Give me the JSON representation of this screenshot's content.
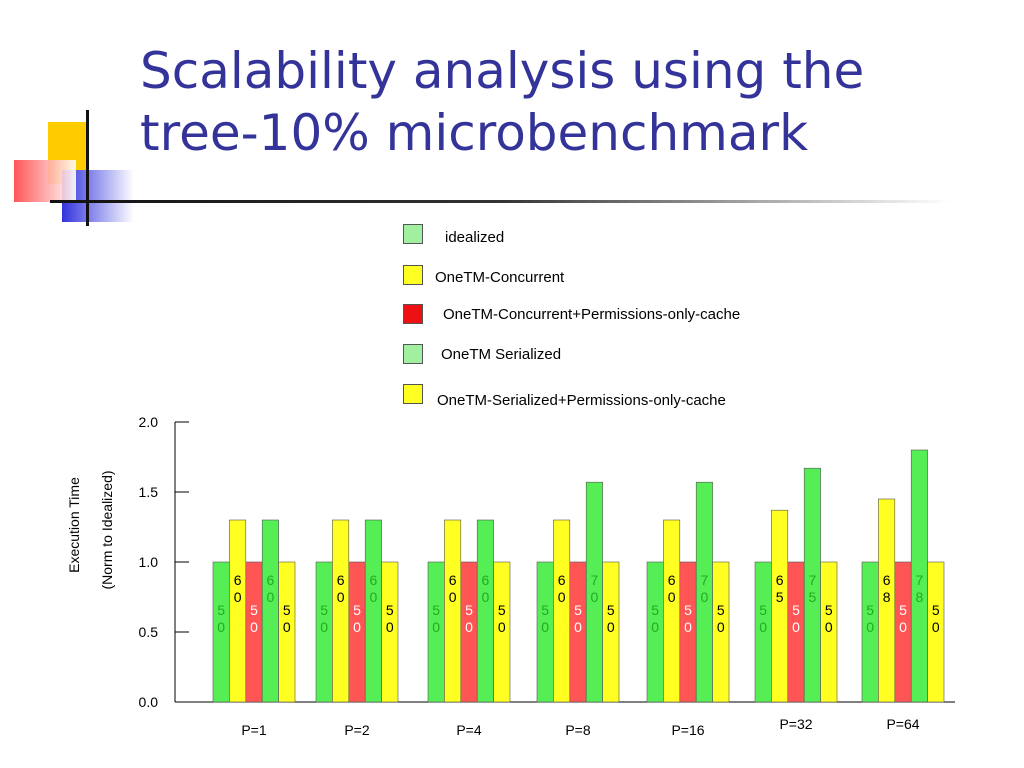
{
  "slide": {
    "title_line1": "Scalability analysis using the",
    "title_line2": "tree-10% microbenchmark"
  },
  "colors": {
    "title": "#333399",
    "green": "#55ee55",
    "yellow": "#ffff22",
    "red": "#ff5555",
    "light_green": "#a0f0a0"
  },
  "chart_data": {
    "type": "bar",
    "ylabel_line1": "Execution Time",
    "ylabel_line2": "(Norm to Idealized)",
    "ylim": [
      0,
      2.0
    ],
    "yticks": [
      "0.0",
      "0.5",
      "1.0",
      "1.5",
      "2.0"
    ],
    "categories": [
      "P=1",
      "P=2",
      "P=4",
      "P=8",
      "P=16",
      "P=32",
      "P=64"
    ],
    "legend": [
      {
        "name": "idealized",
        "color": "#a0f0a0"
      },
      {
        "name": "OneTM-Concurrent",
        "color": "#ffff22"
      },
      {
        "name": "OneTM-Concurrent+Permissions-only-cache",
        "color": "#ee1111"
      },
      {
        "name": "OneTM Serialized",
        "color": "#a0f0a0"
      },
      {
        "name": "OneTM-Serialized+Permissions-only-cache",
        "color": "#ffff22"
      }
    ],
    "series": [
      {
        "color": "#55ee55",
        "label_color": "#22aa22",
        "values": [
          1.0,
          1.0,
          1.0,
          1.0,
          1.0,
          1.0,
          1.0
        ],
        "labels": [
          "50",
          "50",
          "50",
          "50",
          "50",
          "50",
          "50"
        ]
      },
      {
        "color": "#ffff22",
        "label_color": "#000000",
        "values": [
          1.3,
          1.3,
          1.3,
          1.3,
          1.3,
          1.37,
          1.45
        ],
        "labels": [
          "60",
          "60",
          "60",
          "60",
          "60",
          "65",
          "68"
        ]
      },
      {
        "color": "#ff5555",
        "label_color": "#ffffff",
        "values": [
          1.0,
          1.0,
          1.0,
          1.0,
          1.0,
          1.0,
          1.0
        ],
        "labels": [
          "50",
          "50",
          "50",
          "50",
          "50",
          "50",
          "50"
        ]
      },
      {
        "color": "#55ee55",
        "label_color": "#22aa22",
        "values": [
          1.3,
          1.3,
          1.3,
          1.57,
          1.57,
          1.67,
          1.8
        ],
        "labels": [
          "60",
          "60",
          "60",
          "70",
          "70",
          "75",
          "78"
        ]
      },
      {
        "color": "#ffff22",
        "label_color": "#000000",
        "values": [
          1.0,
          1.0,
          1.0,
          1.0,
          1.0,
          1.0,
          1.0
        ],
        "labels": [
          "50",
          "50",
          "50",
          "50",
          "50",
          "50",
          "50"
        ]
      }
    ]
  }
}
